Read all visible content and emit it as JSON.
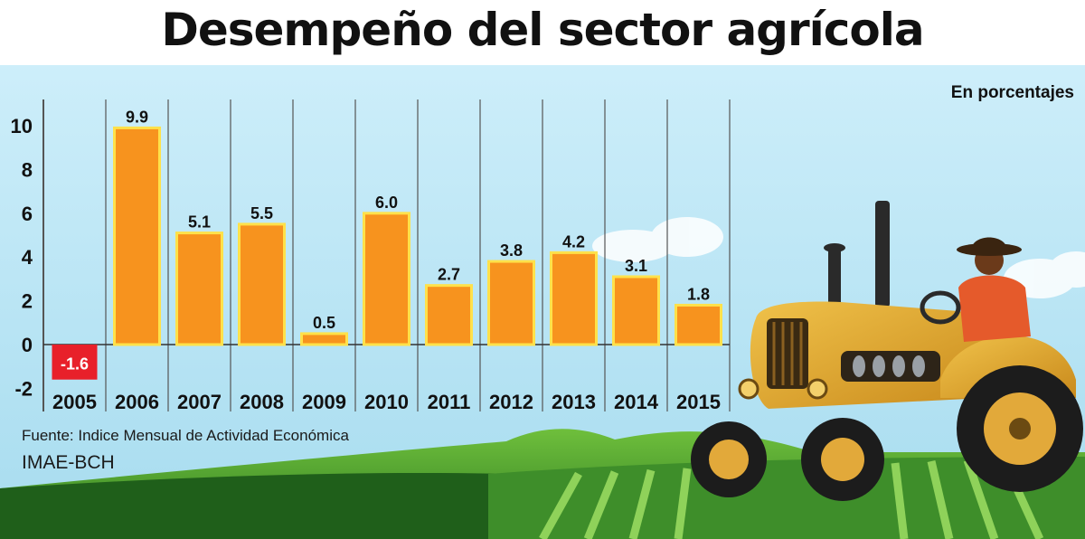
{
  "title": "Desempeño del sector agrícola",
  "unit_note": "En porcentajes",
  "source_line": "Fuente: Indice Mensual de Actividad Económica",
  "source_org": "IMAE-BCH",
  "colors": {
    "bar_positive": "#f7931e",
    "bar_negative": "#e8202a",
    "bar_outline": "#ffe14a",
    "sky_top": "#cdeefa",
    "sky_bottom": "#a7dcef",
    "field_dark": "#1f5f1a",
    "field_light": "#5aa832"
  },
  "chart_data": {
    "type": "bar",
    "title": "Desempeño del sector agrícola",
    "ylabel": "",
    "xlabel": "",
    "categories": [
      "2005",
      "2006",
      "2007",
      "2008",
      "2009",
      "2010",
      "2011",
      "2012",
      "2013",
      "2014",
      "2015"
    ],
    "values": [
      -1.6,
      9.9,
      5.1,
      5.5,
      0.5,
      6.0,
      2.7,
      3.8,
      4.2,
      3.1,
      1.8
    ],
    "value_labels": [
      "-1.6",
      "9.9",
      "5.1",
      "5.5",
      "0.5",
      "6.0",
      "2.7",
      "3.8",
      "4.2",
      "3.1",
      "1.8"
    ],
    "ylim": [
      -2,
      10
    ],
    "yticks": [
      10,
      8,
      6,
      4,
      2,
      0,
      -2
    ],
    "grid": "vertical",
    "legend": "none"
  }
}
